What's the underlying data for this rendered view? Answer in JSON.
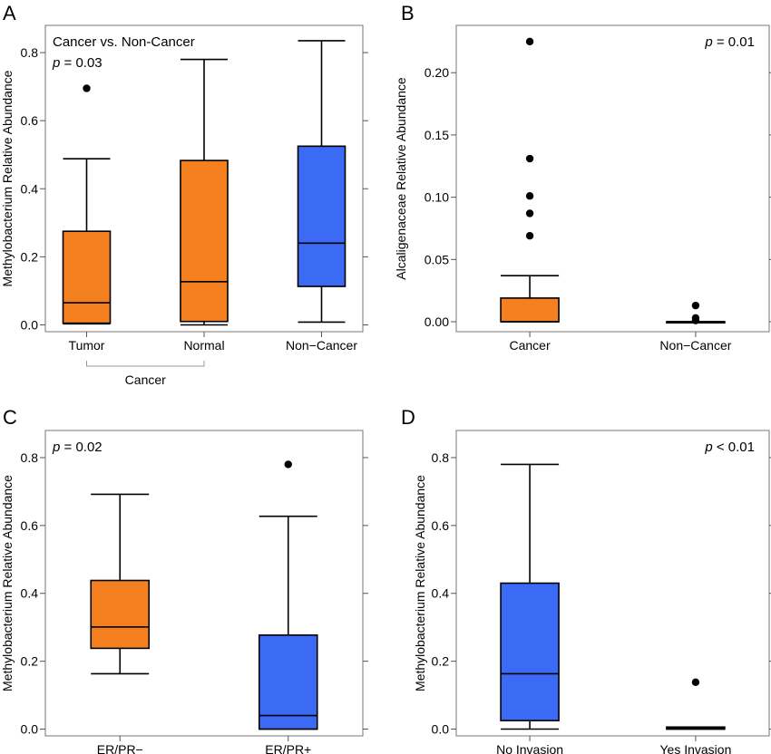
{
  "colors": {
    "orange": "#f5801f",
    "blue": "#3b6bf5",
    "outline": "#000000"
  },
  "chart_data": [
    {
      "type": "box",
      "panel_label": "A",
      "ylabel": "Methylobacterium Relative Abundance",
      "ylim": [
        -0.02,
        0.88
      ],
      "yticks": [
        0.0,
        0.2,
        0.4,
        0.6,
        0.8
      ],
      "ytick_labels": [
        "0.0",
        "0.2",
        "0.4",
        "0.6",
        "0.8"
      ],
      "annotation_lines": [
        "Cancer vs. Non-Cancer",
        "p = 0.03"
      ],
      "annotation_position": "top-left",
      "group_bracket": {
        "label": "Cancer",
        "from": 0,
        "to": 1
      },
      "boxes": [
        {
          "category": "Tumor",
          "color": "orange",
          "whisker_low": 0.003,
          "q1": 0.005,
          "median": 0.065,
          "q3": 0.275,
          "whisker_high": 0.488,
          "outliers": [
            0.695
          ]
        },
        {
          "category": "Normal",
          "color": "orange",
          "whisker_low": 0.0,
          "q1": 0.01,
          "median": 0.127,
          "q3": 0.483,
          "whisker_high": 0.78,
          "outliers": []
        },
        {
          "category": "Non−Cancer",
          "color": "blue",
          "whisker_low": 0.008,
          "q1": 0.113,
          "median": 0.24,
          "q3": 0.525,
          "whisker_high": 0.835,
          "outliers": []
        }
      ]
    },
    {
      "type": "box",
      "panel_label": "B",
      "ylabel": "Alcaligenaceae Relative Abundance",
      "ylim": [
        -0.008,
        0.238
      ],
      "yticks": [
        0.0,
        0.05,
        0.1,
        0.15,
        0.2
      ],
      "ytick_labels": [
        "0.00",
        "0.05",
        "0.10",
        "0.15",
        "0.20"
      ],
      "annotation_lines": [
        "p = 0.01"
      ],
      "annotation_position": "top-right",
      "boxes": [
        {
          "category": "Cancer",
          "color": "orange",
          "whisker_low": 0.0,
          "q1": 0.0,
          "median": 0.0,
          "q3": 0.019,
          "whisker_high": 0.037,
          "outliers": [
            0.069,
            0.087,
            0.101,
            0.131,
            0.225
          ]
        },
        {
          "category": "Non−Cancer",
          "color": "blue",
          "whisker_low": 0.0,
          "q1": 0.0,
          "median": 0.0,
          "q3": 0.0,
          "whisker_high": 0.0,
          "outliers": [
            0.001,
            0.003,
            0.013
          ]
        }
      ]
    },
    {
      "type": "box",
      "panel_label": "C",
      "ylabel": "Methylobacterium Relative Abundance",
      "ylim": [
        -0.02,
        0.88
      ],
      "yticks": [
        0.0,
        0.2,
        0.4,
        0.6,
        0.8
      ],
      "ytick_labels": [
        "0.0",
        "0.2",
        "0.4",
        "0.6",
        "0.8"
      ],
      "annotation_lines": [
        "p = 0.02"
      ],
      "annotation_position": "top-left",
      "boxes": [
        {
          "category": "ER/PR−",
          "color": "orange",
          "whisker_low": 0.163,
          "q1": 0.238,
          "median": 0.301,
          "q3": 0.438,
          "whisker_high": 0.692,
          "outliers": []
        },
        {
          "category": "ER/PR+",
          "color": "blue",
          "whisker_low": 0.0,
          "q1": 0.0,
          "median": 0.04,
          "q3": 0.277,
          "whisker_high": 0.627,
          "outliers": [
            0.78
          ]
        }
      ]
    },
    {
      "type": "box",
      "panel_label": "D",
      "ylabel": "Methylobacterium Relative Abundance",
      "ylim": [
        -0.02,
        0.88
      ],
      "yticks": [
        0.0,
        0.2,
        0.4,
        0.6,
        0.8
      ],
      "ytick_labels": [
        "0.0",
        "0.2",
        "0.4",
        "0.6",
        "0.8"
      ],
      "annotation_lines": [
        "p < 0.01"
      ],
      "annotation_position": "top-right",
      "boxes": [
        {
          "category": "No Invasion",
          "color": "blue",
          "whisker_low": 0.0,
          "q1": 0.025,
          "median": 0.163,
          "q3": 0.43,
          "whisker_high": 0.78,
          "outliers": []
        },
        {
          "category": "Yes Invasion",
          "color": "orange",
          "whisker_low": 0.0,
          "q1": 0.0,
          "median": 0.003,
          "q3": 0.006,
          "whisker_high": 0.006,
          "outliers": [
            0.138
          ]
        }
      ]
    }
  ]
}
